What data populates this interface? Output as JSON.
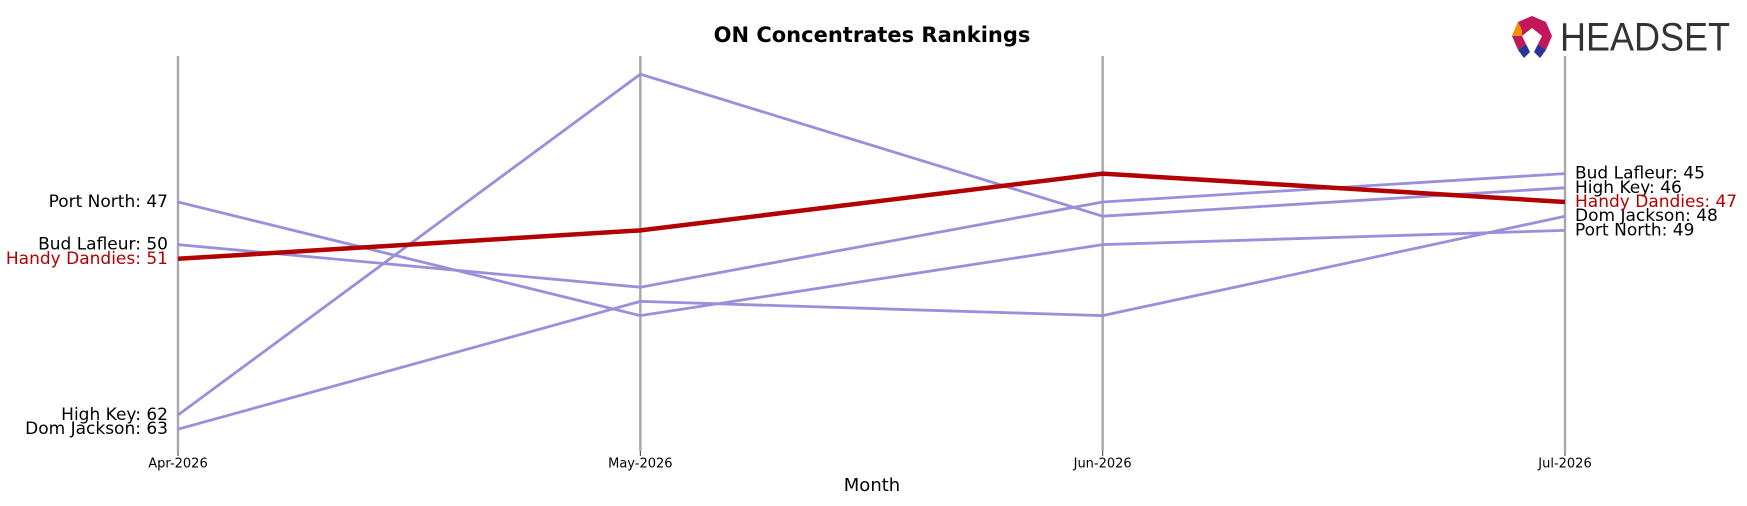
{
  "logo_text": "HEADSET",
  "chart_data": {
    "type": "line",
    "title": "ON Concentrates Rankings",
    "x_label": "Month",
    "categories": [
      "Apr-2026",
      "May-2026",
      "Jun-2026",
      "Jul-2026"
    ],
    "ylim": [
      36,
      65
    ],
    "inverted": true,
    "series": [
      {
        "name": "Port North",
        "color": "#9b8fdb",
        "values": [
          47,
          55,
          50,
          49
        ],
        "value_labels": [
          "Port North: 47",
          null,
          null,
          "Port North: 49"
        ]
      },
      {
        "name": "Bud Lafleur",
        "color": "#9b8fdb",
        "values": [
          50,
          53,
          47,
          45
        ],
        "value_labels": [
          "Bud Lafleur: 50",
          null,
          null,
          "Bud Lafleur: 45"
        ]
      },
      {
        "name": "High Key",
        "color": "#9b8fdb",
        "values": [
          62,
          38,
          48,
          46
        ],
        "value_labels": [
          "High Key: 62",
          null,
          null,
          "High Key: 46"
        ]
      },
      {
        "name": "Dom Jackson",
        "color": "#9b8fdb",
        "values": [
          63,
          54,
          55,
          48
        ],
        "value_labels": [
          "Dom Jackson: 63",
          null,
          null,
          "Dom Jackson: 48"
        ]
      },
      {
        "name": "Handy Dandies",
        "color": "#b30000",
        "highlight": true,
        "values": [
          51,
          49,
          45,
          47
        ],
        "value_labels": [
          "Handy Dandies: 51",
          null,
          null,
          "Handy Dandies: 47"
        ]
      }
    ]
  }
}
